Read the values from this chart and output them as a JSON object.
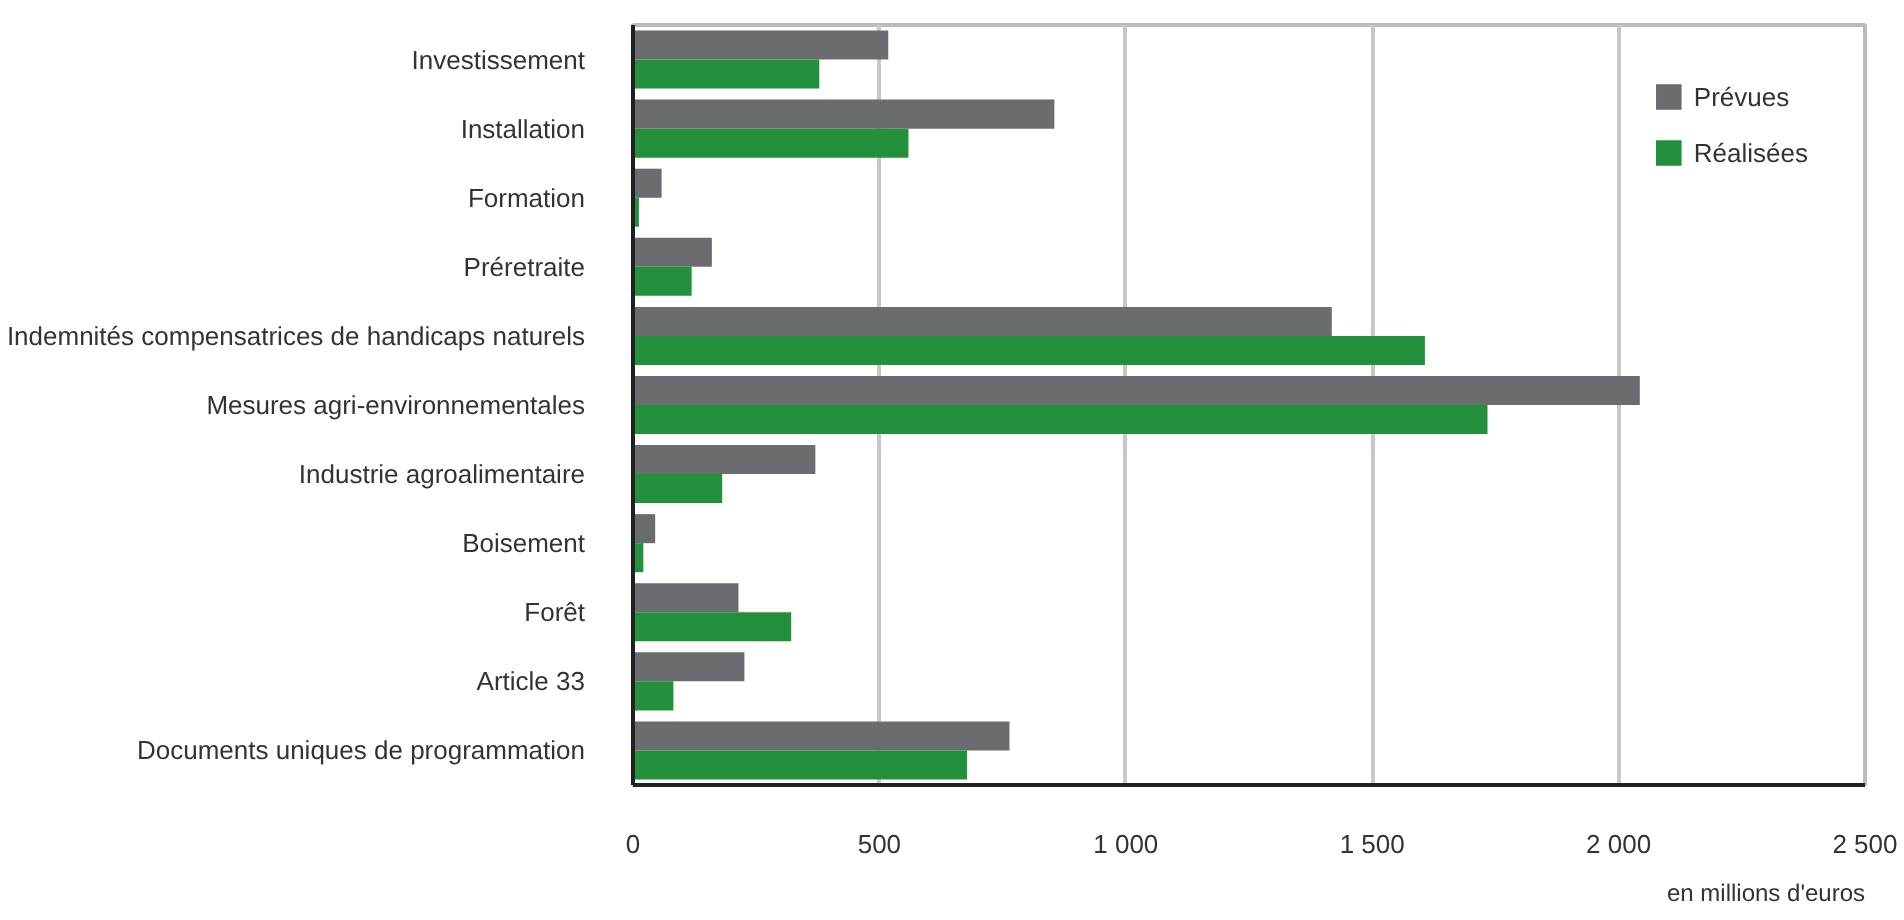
{
  "chart_data": {
    "type": "bar",
    "orientation": "horizontal",
    "xlabel": "en millions d'euros",
    "categories": [
      "Investissement",
      "Installation",
      "Formation",
      "Préretraite",
      "Indemnités compensatrices de handicaps naturels",
      "Mesures agri-environnementales",
      "Industrie agroalimentaire",
      "Boisement",
      "Forêt",
      "Article 33",
      "Documents uniques de programmation"
    ],
    "series": [
      {
        "name": "Prévues",
        "color": "#6b6c70",
        "values": [
          518,
          855,
          58,
          160,
          1418,
          2043,
          370,
          45,
          214,
          226,
          764
        ]
      },
      {
        "name": "Réalisées",
        "color": "#23913c",
        "values": [
          378,
          559,
          12,
          119,
          1607,
          1734,
          181,
          21,
          321,
          82,
          678
        ]
      }
    ],
    "xlim": [
      0,
      2500
    ],
    "xticks": [
      0,
      500,
      {
        "value": 1000,
        "label": "1 000"
      },
      {
        "value": 1500,
        "label": "1 500"
      },
      {
        "value": 2000,
        "label": "2 000"
      },
      {
        "value": 2500,
        "label": "2 500"
      }
    ],
    "grid": "x",
    "legend": "top right"
  }
}
